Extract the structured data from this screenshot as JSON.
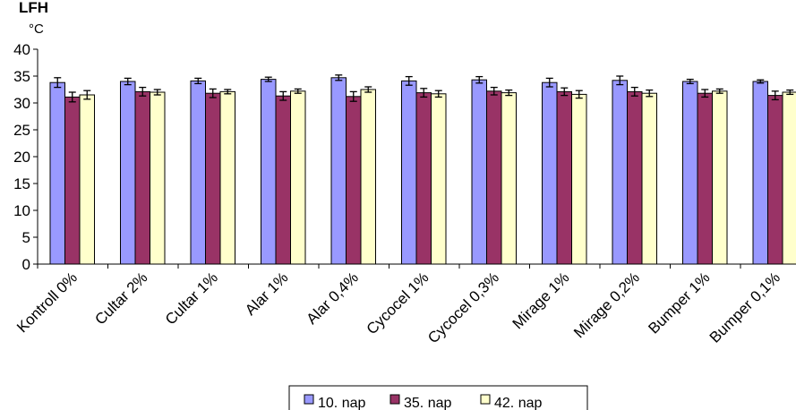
{
  "chart_data": {
    "type": "bar",
    "title": "LFH",
    "ylabel": "°C",
    "ylim": [
      0,
      40
    ],
    "yticks": [
      0,
      5,
      10,
      15,
      20,
      25,
      30,
      35,
      40
    ],
    "grid": false,
    "legend_position": "bottom",
    "categories": [
      "Kontroll 0%",
      "Cultar 2%",
      "Cultar 1%",
      "Alar 1%",
      "Alar 0,4%",
      "Cycocel 1%",
      "Cycocel 0,3%",
      "Mirage 1%",
      "Mirage 0,2%",
      "Bumper 1%",
      "Bumper 0,1%"
    ],
    "series": [
      {
        "name": "10. nap",
        "color": "#9999ff",
        "values": [
          33.8,
          34.0,
          34.1,
          34.4,
          34.7,
          34.1,
          34.3,
          33.8,
          34.2,
          34.0,
          34.0
        ],
        "errors": [
          0.9,
          0.6,
          0.5,
          0.4,
          0.5,
          0.8,
          0.6,
          0.8,
          0.8,
          0.4,
          0.3
        ]
      },
      {
        "name": "35. nap",
        "color": "#993366",
        "values": [
          31.1,
          32.1,
          31.8,
          31.3,
          31.2,
          31.9,
          32.2,
          32.1,
          32.1,
          31.8,
          31.4
        ],
        "errors": [
          0.9,
          0.8,
          0.8,
          0.8,
          0.9,
          0.8,
          0.7,
          0.7,
          0.8,
          0.7,
          0.8
        ]
      },
      {
        "name": "42. nap",
        "color": "#ffffcc",
        "values": [
          31.5,
          32.0,
          32.1,
          32.2,
          32.5,
          31.7,
          31.9,
          31.6,
          31.8,
          32.2,
          32.0
        ],
        "errors": [
          0.8,
          0.5,
          0.4,
          0.4,
          0.5,
          0.6,
          0.5,
          0.7,
          0.6,
          0.4,
          0.4
        ]
      }
    ]
  }
}
